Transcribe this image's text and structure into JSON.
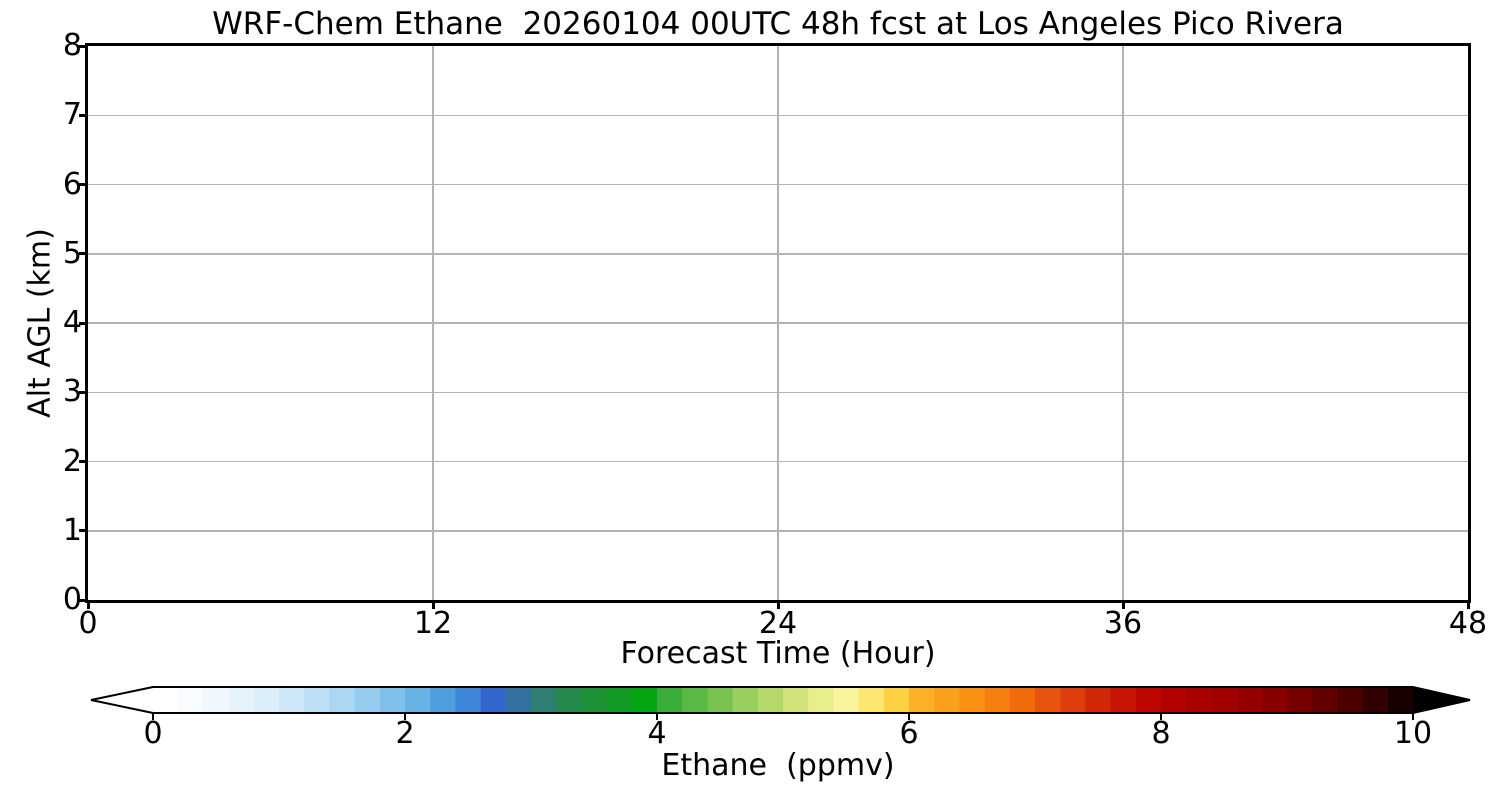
{
  "chart_data": {
    "type": "heatmap",
    "title": "WRF-Chem Ethane  20260104 00UTC 48h fcst at Los Angeles Pico Rivera",
    "xlabel": "Forecast Time (Hour)",
    "ylabel": "Alt AGL (km)",
    "xlim": [
      0,
      48
    ],
    "ylim": [
      0,
      8
    ],
    "xticks": [
      0,
      12,
      24,
      36,
      48
    ],
    "yticks": [
      0,
      1,
      2,
      3,
      4,
      5,
      6,
      7,
      8
    ],
    "grid": true,
    "grid_color": "#b3b3b3",
    "field_values": [],
    "field_note": "plot area is empty/uniform white - no ethane concentration values visible above the colorbar minimum",
    "colorbar": {
      "label": "Ethane  (ppmv)",
      "ticks": [
        0,
        2,
        4,
        6,
        8,
        10
      ],
      "range": [
        0,
        10
      ],
      "extend": "both",
      "under_arrow_color": "#ffffff",
      "over_arrow_color": "#000000",
      "outline_color": "#000000",
      "segment_colors": [
        "#ffffff",
        "#f9fcfe",
        "#f1f8fd",
        "#e7f3fc",
        "#dbeefa",
        "#cde7f8",
        "#bddff6",
        "#abd7f3",
        "#95ccee",
        "#7fc0ea",
        "#66b3e4",
        "#4f9fde",
        "#3e86d8",
        "#3467cc",
        "#33719e",
        "#2e7f74",
        "#26894e",
        "#1c9136",
        "#119a24",
        "#06a512",
        "#3aad3a",
        "#58b945",
        "#78c350",
        "#97ce5e",
        "#b5d86b",
        "#d2e27b",
        "#e9ee8d",
        "#faf49e",
        "#fde671",
        "#fdcf45",
        "#fcb028",
        "#faa01d",
        "#f89114",
        "#f57f0e",
        "#f06b0c",
        "#e8550e",
        "#de3e0c",
        "#d32808",
        "#c81405",
        "#bd0502",
        "#b30000",
        "#ab0000",
        "#a30000",
        "#970000",
        "#880000",
        "#760000",
        "#620000",
        "#4c0000",
        "#330000",
        "#190000"
      ]
    }
  }
}
